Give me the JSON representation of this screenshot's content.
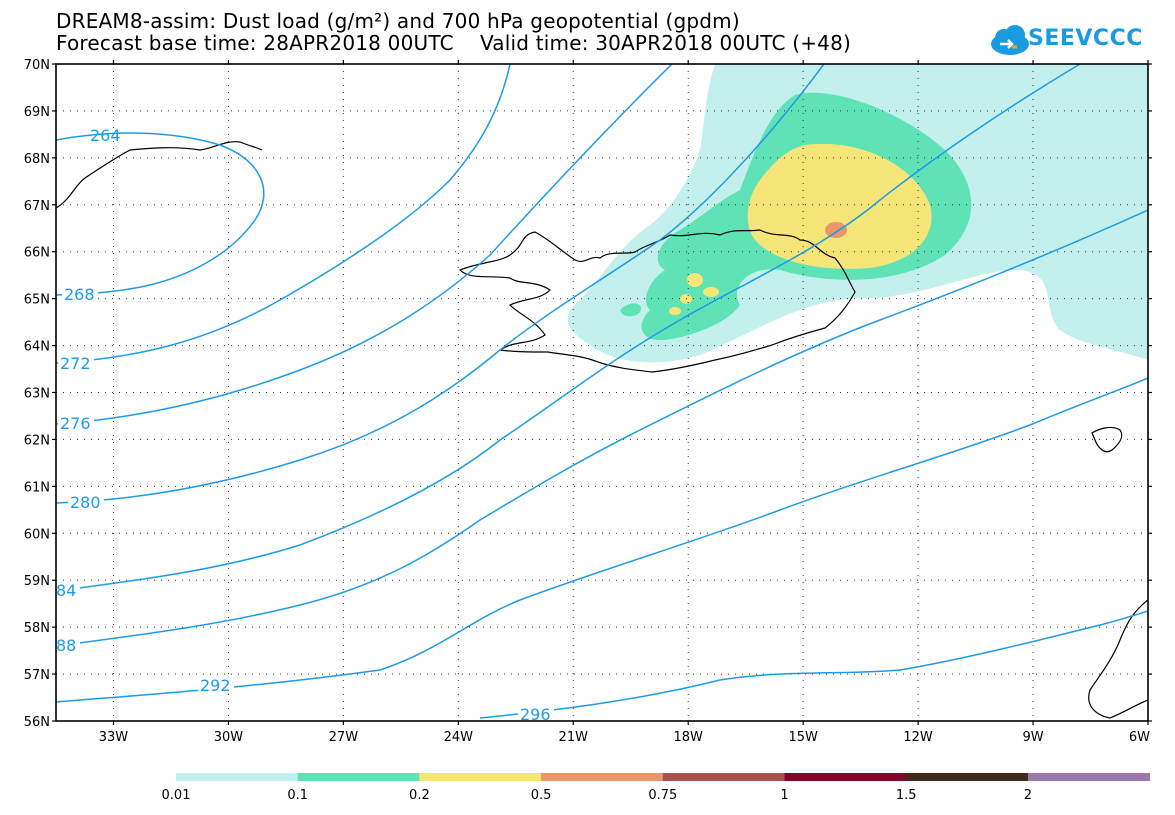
{
  "title": {
    "line1": "DREAM8-assim: Dust load (g/m²) and 700 hPa geopotential (gpdm)",
    "line2": "Forecast base time: 28APR2018 00UTC    Valid time: 30APR2018 00UTC (+48)"
  },
  "logo": {
    "text": "SEEVCCC",
    "icon": "cloud-icon"
  },
  "map": {
    "region": "Iceland / North Atlantic",
    "lon_range": [
      -34.5,
      -6
    ],
    "lat_range": [
      56,
      70
    ],
    "lat_labels": [
      "70N",
      "69N",
      "68N",
      "67N",
      "66N",
      "65N",
      "64N",
      "63N",
      "62N",
      "61N",
      "60N",
      "59N",
      "58N",
      "57N",
      "56N"
    ],
    "lon_labels": [
      "33W",
      "30W",
      "27W",
      "24W",
      "21W",
      "18W",
      "15W",
      "12W",
      "9W",
      "6W"
    ],
    "contour_color": "#1e9be6",
    "contour_labels": [
      "264",
      "268",
      "272",
      "276",
      "280",
      "84",
      "88",
      "292",
      "296"
    ]
  },
  "colorbar": {
    "labels": [
      "0.01",
      "0.1",
      "0.2",
      "0.5",
      "0.75",
      "1",
      "1.5",
      "2"
    ],
    "colors": [
      "#c3f0ec",
      "#5fe2b6",
      "#f6e67a",
      "#e8966a",
      "#a8504b",
      "#7a0a2c",
      "#3e2b17",
      "#9a78a8"
    ]
  }
}
